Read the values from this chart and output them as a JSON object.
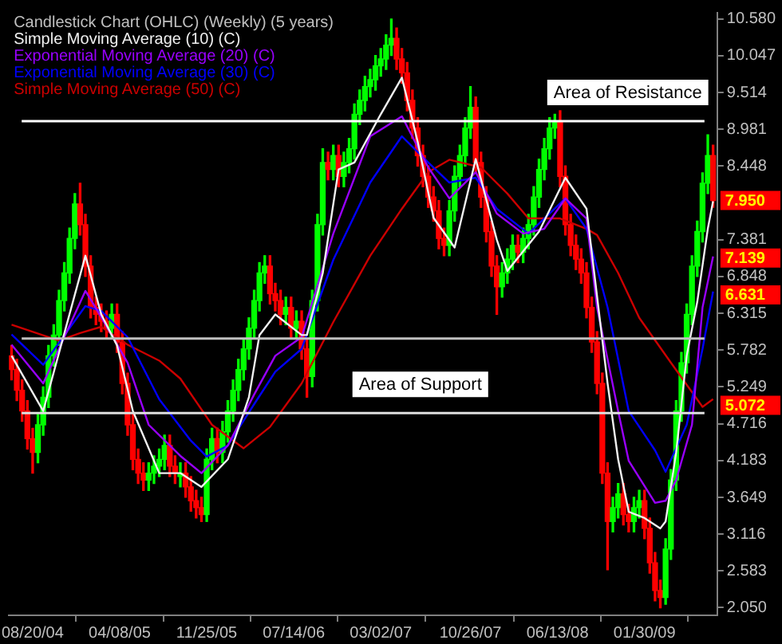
{
  "chart_data": {
    "type": "candlestick",
    "title": "Candlestick Chart (OHLC) (Weekly) (5 years)",
    "x": [
      "2004-06-25",
      "2004-07-09",
      "2004-07-23",
      "2004-08-06",
      "2004-08-20",
      "2004-09-03",
      "2004-09-17",
      "2004-10-01",
      "2004-10-15",
      "2004-10-29",
      "2004-11-12",
      "2004-11-26",
      "2004-12-10",
      "2004-12-24",
      "2005-01-07",
      "2005-01-21",
      "2005-02-04",
      "2005-02-18",
      "2005-03-04",
      "2005-03-18",
      "2005-04-01",
      "2005-04-15",
      "2005-04-29",
      "2005-05-13",
      "2005-05-27",
      "2005-06-10",
      "2005-06-24",
      "2005-07-08",
      "2005-07-22",
      "2005-08-05",
      "2005-08-19",
      "2005-09-02",
      "2005-09-16",
      "2005-09-30",
      "2005-10-14",
      "2005-10-28",
      "2005-11-11",
      "2005-11-25",
      "2005-12-09",
      "2005-12-23",
      "2006-01-06",
      "2006-01-20",
      "2006-02-03",
      "2006-02-17",
      "2006-03-03",
      "2006-03-17",
      "2006-03-31",
      "2006-04-14",
      "2006-04-28",
      "2006-05-12",
      "2006-05-26",
      "2006-06-09",
      "2006-06-23",
      "2006-07-07",
      "2006-07-21",
      "2006-08-04",
      "2006-08-18",
      "2006-09-01",
      "2006-09-15",
      "2006-09-29",
      "2006-10-13",
      "2006-10-27",
      "2006-11-10",
      "2006-11-24",
      "2006-12-08",
      "2006-12-22",
      "2007-01-05",
      "2007-01-19",
      "2007-02-02",
      "2007-02-16",
      "2007-03-02",
      "2007-03-16",
      "2007-03-30",
      "2007-04-13",
      "2007-04-27",
      "2007-05-11",
      "2007-05-25",
      "2007-06-08",
      "2007-06-22",
      "2007-07-06",
      "2007-07-20",
      "2007-08-03",
      "2007-08-17",
      "2007-08-31",
      "2007-09-14",
      "2007-09-28",
      "2007-10-12",
      "2007-10-26",
      "2007-11-09",
      "2007-11-23",
      "2007-12-07",
      "2007-12-21",
      "2008-01-04",
      "2008-01-18",
      "2008-02-01",
      "2008-02-15",
      "2008-02-29",
      "2008-03-14",
      "2008-03-28",
      "2008-04-11",
      "2008-04-25",
      "2008-05-09",
      "2008-05-23",
      "2008-06-06",
      "2008-06-20",
      "2008-07-04",
      "2008-07-18",
      "2008-08-01",
      "2008-08-15",
      "2008-08-29",
      "2008-09-12",
      "2008-09-26",
      "2008-10-10",
      "2008-10-24",
      "2008-11-07",
      "2008-11-21",
      "2008-12-05",
      "2008-12-19",
      "2009-01-02",
      "2009-01-16",
      "2009-01-30",
      "2009-02-13",
      "2009-02-27",
      "2009-03-13",
      "2009-03-27",
      "2009-04-10",
      "2009-04-24",
      "2009-05-08",
      "2009-05-22",
      "2009-06-05",
      "2009-06-19",
      "2009-07-03",
      "2009-07-17",
      "2009-07-31"
    ],
    "series": [
      {
        "ohlc": [
          [
            5.7,
            5.85,
            5.35,
            5.5
          ],
          [
            5.5,
            5.65,
            5.05,
            5.2
          ],
          [
            5.2,
            5.35,
            4.75,
            4.9
          ],
          [
            4.9,
            5.05,
            4.35,
            4.5
          ],
          [
            4.5,
            4.65,
            4.0,
            4.3
          ],
          [
            4.3,
            4.85,
            4.15,
            4.7
          ],
          [
            4.7,
            5.25,
            4.55,
            5.1
          ],
          [
            5.1,
            5.85,
            4.95,
            5.7
          ],
          [
            5.7,
            6.15,
            5.55,
            6.0
          ],
          [
            6.0,
            6.65,
            5.85,
            6.5
          ],
          [
            6.5,
            7.05,
            6.35,
            6.9
          ],
          [
            6.9,
            7.55,
            6.75,
            7.4
          ],
          [
            7.4,
            8.05,
            7.25,
            7.9
          ],
          [
            7.9,
            8.2,
            7.45,
            7.6
          ],
          [
            7.6,
            7.75,
            6.85,
            7.0
          ],
          [
            7.0,
            7.15,
            6.25,
            6.4
          ],
          [
            6.4,
            6.55,
            6.15,
            6.3
          ],
          [
            6.3,
            6.45,
            6.05,
            6.2
          ],
          [
            6.2,
            6.35,
            5.95,
            6.1
          ],
          [
            6.1,
            6.45,
            5.95,
            6.3
          ],
          [
            6.3,
            6.45,
            5.75,
            5.9
          ],
          [
            5.9,
            6.05,
            5.15,
            5.3
          ],
          [
            5.3,
            5.45,
            4.55,
            4.7
          ],
          [
            4.7,
            4.85,
            4.05,
            4.2
          ],
          [
            4.2,
            4.35,
            3.85,
            4.0
          ],
          [
            4.0,
            4.15,
            3.75,
            3.9
          ],
          [
            3.9,
            4.15,
            3.75,
            4.0
          ],
          [
            4.0,
            4.25,
            3.85,
            4.1
          ],
          [
            4.1,
            4.35,
            3.95,
            4.2
          ],
          [
            4.2,
            4.55,
            4.05,
            4.4
          ],
          [
            4.4,
            4.55,
            3.95,
            4.1
          ],
          [
            4.1,
            4.25,
            3.85,
            4.0
          ],
          [
            3.95,
            4.15,
            3.8,
            4.0
          ],
          [
            4.0,
            4.15,
            3.65,
            3.8
          ],
          [
            3.8,
            3.95,
            3.45,
            3.6
          ],
          [
            3.6,
            3.75,
            3.35,
            3.5
          ],
          [
            3.5,
            3.65,
            3.3,
            3.4
          ],
          [
            3.4,
            4.35,
            3.3,
            4.2
          ],
          [
            4.2,
            4.65,
            4.05,
            4.5
          ],
          [
            4.5,
            4.65,
            4.15,
            4.3
          ],
          [
            4.3,
            4.75,
            4.15,
            4.6
          ],
          [
            4.6,
            5.05,
            4.45,
            4.9
          ],
          [
            4.9,
            5.35,
            4.75,
            5.2
          ],
          [
            5.2,
            5.65,
            5.05,
            5.5
          ],
          [
            5.5,
            5.95,
            5.35,
            5.8
          ],
          [
            5.8,
            6.25,
            5.65,
            6.1
          ],
          [
            6.1,
            6.65,
            5.95,
            6.5
          ],
          [
            6.5,
            7.05,
            6.35,
            6.9
          ],
          [
            6.9,
            7.15,
            6.75,
            7.0
          ],
          [
            7.0,
            7.15,
            6.45,
            6.6
          ],
          [
            6.6,
            6.75,
            6.35,
            6.5
          ],
          [
            6.5,
            6.65,
            6.15,
            6.3
          ],
          [
            6.3,
            6.55,
            6.15,
            6.4
          ],
          [
            6.4,
            6.55,
            5.95,
            6.1
          ],
          [
            6.1,
            6.35,
            5.95,
            6.2
          ],
          [
            6.2,
            6.35,
            5.65,
            5.8
          ],
          [
            5.8,
            5.95,
            5.1,
            5.4
          ],
          [
            5.4,
            6.65,
            5.25,
            6.5
          ],
          [
            6.5,
            7.75,
            6.35,
            7.6
          ],
          [
            7.6,
            8.7,
            7.45,
            8.5
          ],
          [
            8.5,
            8.65,
            8.25,
            8.4
          ],
          [
            8.4,
            8.75,
            8.25,
            8.6
          ],
          [
            8.6,
            8.75,
            8.15,
            8.3
          ],
          [
            8.3,
            8.65,
            8.15,
            8.5
          ],
          [
            8.5,
            8.85,
            8.35,
            8.7
          ],
          [
            8.7,
            9.35,
            8.55,
            9.2
          ],
          [
            9.2,
            9.55,
            9.05,
            9.4
          ],
          [
            9.4,
            9.75,
            9.25,
            9.6
          ],
          [
            9.6,
            9.85,
            9.45,
            9.7
          ],
          [
            9.7,
            10.05,
            9.55,
            9.9
          ],
          [
            9.9,
            10.15,
            9.75,
            10.0
          ],
          [
            10.0,
            10.35,
            9.85,
            10.2
          ],
          [
            10.2,
            10.58,
            10.05,
            10.3
          ],
          [
            10.3,
            10.45,
            9.85,
            10.0
          ],
          [
            10.0,
            10.15,
            9.65,
            9.8
          ],
          [
            9.8,
            9.95,
            9.25,
            9.4
          ],
          [
            9.4,
            9.55,
            8.85,
            9.0
          ],
          [
            9.0,
            9.15,
            8.45,
            8.6
          ],
          [
            8.6,
            8.75,
            8.15,
            8.3
          ],
          [
            8.3,
            8.45,
            7.85,
            8.0
          ],
          [
            8.0,
            8.15,
            7.65,
            7.8
          ],
          [
            7.8,
            7.95,
            7.25,
            7.4
          ],
          [
            7.4,
            7.55,
            7.15,
            7.3
          ],
          [
            7.3,
            7.95,
            7.15,
            7.8
          ],
          [
            7.8,
            8.45,
            7.65,
            8.3
          ],
          [
            8.3,
            8.75,
            8.15,
            8.6
          ],
          [
            8.6,
            9.15,
            8.45,
            9.0
          ],
          [
            9.0,
            9.6,
            8.85,
            9.3
          ],
          [
            9.3,
            9.45,
            8.35,
            8.5
          ],
          [
            8.5,
            8.65,
            7.85,
            8.0
          ],
          [
            8.0,
            8.15,
            7.35,
            7.5
          ],
          [
            7.5,
            7.65,
            6.85,
            7.0
          ],
          [
            7.0,
            7.15,
            6.3,
            6.7
          ],
          [
            6.7,
            7.05,
            6.55,
            6.9
          ],
          [
            6.9,
            7.25,
            6.75,
            7.1
          ],
          [
            7.1,
            7.45,
            6.95,
            7.3
          ],
          [
            7.3,
            7.45,
            7.05,
            7.2
          ],
          [
            7.2,
            7.55,
            7.05,
            7.4
          ],
          [
            7.4,
            7.75,
            7.25,
            7.6
          ],
          [
            7.6,
            8.15,
            7.45,
            8.0
          ],
          [
            8.0,
            8.55,
            7.85,
            8.4
          ],
          [
            8.4,
            8.85,
            8.25,
            8.7
          ],
          [
            8.7,
            9.15,
            8.55,
            9.0
          ],
          [
            9.0,
            9.2,
            8.85,
            9.1
          ],
          [
            9.1,
            9.25,
            8.15,
            8.3
          ],
          [
            8.3,
            8.45,
            7.45,
            7.6
          ],
          [
            7.6,
            7.75,
            7.15,
            7.3
          ],
          [
            7.3,
            7.45,
            6.95,
            7.1
          ],
          [
            7.1,
            7.25,
            6.75,
            6.9
          ],
          [
            6.9,
            7.05,
            6.25,
            6.4
          ],
          [
            6.4,
            6.55,
            5.75,
            5.9
          ],
          [
            5.9,
            6.05,
            5.15,
            5.3
          ],
          [
            5.3,
            5.45,
            3.85,
            4.0
          ],
          [
            4.0,
            4.15,
            2.6,
            3.3
          ],
          [
            3.3,
            3.65,
            3.15,
            3.5
          ],
          [
            3.5,
            3.85,
            3.35,
            3.7
          ],
          [
            3.7,
            3.85,
            3.25,
            3.4
          ],
          [
            3.4,
            3.55,
            3.15,
            3.3
          ],
          [
            3.3,
            3.65,
            3.15,
            3.5
          ],
          [
            3.5,
            3.75,
            3.35,
            3.6
          ],
          [
            3.6,
            3.75,
            3.05,
            3.2
          ],
          [
            3.2,
            3.35,
            2.55,
            2.7
          ],
          [
            2.7,
            2.85,
            2.15,
            2.3
          ],
          [
            2.3,
            2.45,
            2.05,
            2.2
          ],
          [
            2.2,
            3.05,
            2.1,
            2.9
          ],
          [
            2.9,
            4.05,
            2.75,
            3.9
          ],
          [
            3.9,
            5.05,
            3.75,
            4.9
          ],
          [
            4.9,
            5.75,
            4.75,
            5.6
          ],
          [
            5.6,
            6.45,
            5.45,
            6.3
          ],
          [
            6.3,
            7.15,
            6.15,
            7.0
          ],
          [
            7.0,
            7.65,
            6.85,
            7.5
          ],
          [
            7.5,
            8.35,
            7.35,
            8.2
          ],
          [
            8.2,
            8.9,
            8.05,
            8.6
          ],
          [
            8.6,
            8.75,
            7.85,
            7.95
          ]
        ],
        "colors": [
          "#ff0000",
          "#ff0000",
          "#ff0000",
          "#ff0000",
          "#ff0000",
          "#00ff00",
          "#00ff00",
          "#00ff00",
          "#00ff00",
          "#00ff00",
          "#00ff00",
          "#00ff00",
          "#00ff00",
          "#ff0000",
          "#ff0000",
          "#ff0000",
          "#ff0000",
          "#ff0000",
          "#ff0000",
          "#00ff00",
          "#ff0000",
          "#ff0000",
          "#ff0000",
          "#ff0000",
          "#ff0000",
          "#ff0000",
          "#00ff00",
          "#00ff00",
          "#00ff00",
          "#00ff00",
          "#ff0000",
          "#ff0000",
          "#00ff00",
          "#ff0000",
          "#ff0000",
          "#ff0000",
          "#ff0000",
          "#00ff00",
          "#00ff00",
          "#ff0000",
          "#00ff00",
          "#00ff00",
          "#00ff00",
          "#00ff00",
          "#00ff00",
          "#00ff00",
          "#00ff00",
          "#00ff00",
          "#00ff00",
          "#ff0000",
          "#ff0000",
          "#ff0000",
          "#00ff00",
          "#ff0000",
          "#00ff00",
          "#ff0000",
          "#ff0000",
          "#00ff00",
          "#00ff00",
          "#00ff00",
          "#ff0000",
          "#00ff00",
          "#ff0000",
          "#00ff00",
          "#00ff00",
          "#00ff00",
          "#00ff00",
          "#00ff00",
          "#00ff00",
          "#00ff00",
          "#00ff00",
          "#00ff00",
          "#00ff00",
          "#ff0000",
          "#ff0000",
          "#ff0000",
          "#ff0000",
          "#ff0000",
          "#ff0000",
          "#ff0000",
          "#ff0000",
          "#ff0000",
          "#ff0000",
          "#00ff00",
          "#00ff00",
          "#00ff00",
          "#00ff00",
          "#00ff00",
          "#ff0000",
          "#ff0000",
          "#ff0000",
          "#ff0000",
          "#ff0000",
          "#00ff00",
          "#00ff00",
          "#00ff00",
          "#ff0000",
          "#00ff00",
          "#00ff00",
          "#00ff00",
          "#00ff00",
          "#00ff00",
          "#00ff00",
          "#00ff00",
          "#ff0000",
          "#ff0000",
          "#ff0000",
          "#ff0000",
          "#ff0000",
          "#ff0000",
          "#ff0000",
          "#ff0000",
          "#ff0000",
          "#ff0000",
          "#00ff00",
          "#00ff00",
          "#ff0000",
          "#ff0000",
          "#00ff00",
          "#00ff00",
          "#ff0000",
          "#ff0000",
          "#ff0000",
          "#ff0000",
          "#00ff00",
          "#00ff00",
          "#00ff00",
          "#00ff00",
          "#00ff00",
          "#00ff00",
          "#00ff00",
          "#00ff00",
          "#00ff00",
          "#ff0000"
        ]
      },
      {
        "type": "line",
        "name": "Simple Moving Average (10) (C)",
        "color": "#f0f0f0",
        "x": [
          "2004-06-25",
          "2004-09-17",
          "2005-01-07",
          "2005-02-18",
          "2005-04-01",
          "2005-05-13",
          "2005-07-22",
          "2005-09-16",
          "2005-11-11",
          "2006-01-20",
          "2006-03-17",
          "2006-04-14",
          "2006-05-26",
          "2006-08-04",
          "2006-08-18",
          "2006-09-29",
          "2006-11-10",
          "2006-12-22",
          "2007-03-02",
          "2007-04-27",
          "2007-06-08",
          "2007-07-20",
          "2007-09-14",
          "2007-11-09",
          "2008-01-04",
          "2008-02-01",
          "2008-04-25",
          "2008-07-04",
          "2008-08-29",
          "2008-10-24",
          "2008-11-21",
          "2008-12-19",
          "2009-01-30",
          "2009-03-13",
          "2009-03-27",
          "2009-04-24",
          "2009-05-22",
          "2009-06-19",
          "2009-07-17",
          "2009-07-31"
        ],
        "values": [
          5.7,
          4.9,
          7.15,
          6.3,
          5.85,
          4.9,
          4.0,
          4.0,
          3.8,
          4.2,
          5.1,
          6.0,
          6.3,
          6.0,
          6.0,
          6.9,
          8.4,
          8.5,
          9.2,
          9.73,
          8.8,
          7.7,
          7.27,
          8.55,
          7.38,
          6.93,
          7.5,
          8.28,
          7.83,
          5.3,
          4.2,
          3.44,
          3.35,
          3.2,
          3.3,
          4.3,
          5.7,
          6.48,
          7.54,
          7.94
        ]
      },
      {
        "type": "line",
        "name": "Exponential Moving Average (20) (C)",
        "color": "#9900ff",
        "x": [
          "2004-06-25",
          "2004-09-17",
          "2005-01-07",
          "2005-02-18",
          "2005-04-29",
          "2005-06-24",
          "2005-09-16",
          "2005-11-11",
          "2006-01-20",
          "2006-03-31",
          "2006-05-26",
          "2006-08-04",
          "2006-10-27",
          "2007-02-02",
          "2007-04-27",
          "2007-07-06",
          "2007-08-31",
          "2007-11-09",
          "2008-01-04",
          "2008-03-14",
          "2008-05-09",
          "2008-07-04",
          "2008-08-29",
          "2008-09-26",
          "2008-11-21",
          "2008-12-19",
          "2009-02-27",
          "2009-03-27",
          "2009-04-24",
          "2009-06-05",
          "2009-07-03",
          "2009-07-31"
        ],
        "values": [
          5.86,
          5.3,
          6.64,
          6.26,
          5.6,
          4.7,
          4.25,
          4.0,
          4.4,
          5.14,
          5.7,
          5.97,
          7.47,
          8.88,
          9.17,
          8.43,
          7.98,
          8.36,
          7.76,
          7.47,
          7.54,
          7.98,
          7.69,
          6.4,
          4.9,
          4.18,
          3.57,
          3.6,
          3.9,
          4.7,
          6.4,
          7.139
        ]
      },
      {
        "type": "line",
        "name": "Exponential Moving Average (30) (C)",
        "color": "#0000ff",
        "x": [
          "2004-06-25",
          "2004-09-17",
          "2005-01-07",
          "2005-02-18",
          "2005-04-29",
          "2005-07-22",
          "2005-10-14",
          "2005-11-25",
          "2006-01-20",
          "2006-03-31",
          "2006-05-26",
          "2006-08-04",
          "2006-10-27",
          "2007-02-02",
          "2007-04-27",
          "2007-07-06",
          "2007-08-31",
          "2007-11-09",
          "2008-01-04",
          "2008-03-28",
          "2008-07-04",
          "2008-08-29",
          "2008-10-24",
          "2008-12-19",
          "2009-02-27",
          "2009-03-27",
          "2009-05-22",
          "2009-07-03",
          "2009-07-31"
        ],
        "values": [
          6.01,
          5.57,
          6.42,
          6.35,
          5.97,
          5.07,
          4.47,
          4.24,
          4.4,
          5.0,
          5.47,
          5.8,
          7.09,
          8.21,
          8.88,
          8.5,
          8.21,
          8.28,
          7.83,
          7.47,
          7.98,
          7.54,
          6.4,
          4.9,
          4.33,
          4.02,
          4.7,
          5.8,
          6.631
        ]
      },
      {
        "type": "line",
        "name": "Simple Moving Average (50) (C)",
        "color": "#cc0000",
        "x": [
          "2004-06-25",
          "2004-10-29",
          "2004-12-24",
          "2005-02-18",
          "2005-04-29",
          "2005-07-22",
          "2005-09-16",
          "2005-12-09",
          "2006-03-03",
          "2006-05-12",
          "2006-08-04",
          "2006-10-27",
          "2007-02-02",
          "2007-04-27",
          "2007-07-06",
          "2007-08-31",
          "2007-11-23",
          "2008-02-01",
          "2008-03-28",
          "2008-06-20",
          "2008-08-29",
          "2008-09-26",
          "2008-11-21",
          "2009-01-16",
          "2009-04-10",
          "2009-07-03",
          "2009-07-31"
        ],
        "values": [
          6.15,
          5.92,
          6.03,
          6.12,
          5.86,
          5.63,
          5.37,
          4.7,
          4.36,
          4.67,
          5.3,
          6.19,
          7.15,
          7.83,
          8.36,
          8.54,
          8.43,
          8.05,
          7.69,
          7.69,
          7.54,
          7.45,
          6.9,
          6.25,
          5.6,
          4.96,
          5.072
        ]
      }
    ],
    "xlim": [
      "2004-06-18",
      "2009-08-11"
    ],
    "xticks": [
      {
        "value": "2004-08-20",
        "label": "08/20/04"
      },
      {
        "value": "2005-04-08",
        "label": "04/08/05"
      },
      {
        "value": "2005-11-25",
        "label": "11/25/05"
      },
      {
        "value": "2006-07-14",
        "label": "07/14/06"
      },
      {
        "value": "2007-03-02",
        "label": "03/02/07"
      },
      {
        "value": "2007-10-26",
        "label": "10/26/07"
      },
      {
        "value": "2008-06-13",
        "label": "06/13/08"
      },
      {
        "value": "2009-01-30",
        "label": "01/30/09"
      }
    ],
    "ylim": [
      1.94,
      10.67
    ],
    "yticks": [
      {
        "value": 10.58,
        "label": "10.580"
      },
      {
        "value": 10.047,
        "label": "10.047"
      },
      {
        "value": 9.514,
        "label": "9.514"
      },
      {
        "value": 8.981,
        "label": "8.981"
      },
      {
        "value": 8.448,
        "label": "8.448"
      },
      {
        "value": 7.381,
        "label": "7.381"
      },
      {
        "value": 6.848,
        "label": "6.848"
      },
      {
        "value": 6.315,
        "label": "6.315"
      },
      {
        "value": 5.782,
        "label": "5.782"
      },
      {
        "value": 5.249,
        "label": "5.249"
      },
      {
        "value": 4.716,
        "label": "4.716"
      },
      {
        "value": 4.183,
        "label": "4.183"
      },
      {
        "value": 3.649,
        "label": "3.649"
      },
      {
        "value": 3.116,
        "label": "3.116"
      },
      {
        "value": 2.583,
        "label": "2.583"
      },
      {
        "value": 2.05,
        "label": "2.050"
      }
    ],
    "ref_lines": [
      {
        "axis": "y",
        "value": 9.1,
        "label": "Area of Resistance",
        "color": "#ffffff"
      },
      {
        "axis": "y",
        "value": 4.87,
        "label": "Area of Support",
        "color": "#e0e0e0"
      },
      {
        "axis": "y",
        "value": 5.95,
        "color": "#c0c0c0"
      }
    ],
    "annotations": [
      {
        "text": "7.950",
        "x": "2009-07-31",
        "y": 7.95
      },
      {
        "text": "7.139",
        "x": "2009-07-31",
        "y": 7.139
      },
      {
        "text": "6.631",
        "x": "2009-07-31",
        "y": 6.631
      },
      {
        "text": "5.072",
        "x": "2009-07-31",
        "y": 5.072
      }
    ],
    "legend": "top left",
    "marker": "none",
    "line_style": "solid"
  }
}
